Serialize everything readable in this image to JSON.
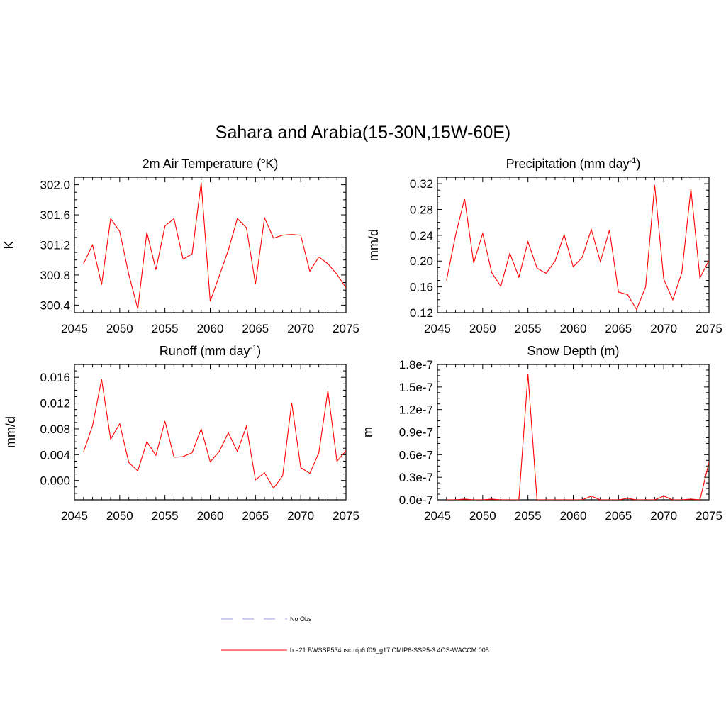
{
  "figure": {
    "title": "Sahara and Arabia(15-30N,15W-60E)"
  },
  "chart_data": [
    {
      "type": "line",
      "id": "temp",
      "title": "2m Air Temperature (°K)",
      "title_parts": [
        "2m Air Temperature (",
        "o",
        "K)"
      ],
      "xlabel": "",
      "ylabel": "K",
      "xlim": [
        2045,
        2075
      ],
      "ylim": [
        300.3,
        302.1
      ],
      "xticks": [
        2045,
        2050,
        2055,
        2060,
        2065,
        2070,
        2075
      ],
      "xtick_labels": [
        "2045",
        "2050",
        "2055",
        "2060",
        "2065",
        "2070",
        "2075"
      ],
      "yticks": [
        300.4,
        300.8,
        301.2,
        301.6,
        302.0
      ],
      "ytick_labels": [
        "300.4",
        "300.8",
        "301.2",
        "301.6",
        "302.0"
      ],
      "series": [
        {
          "name": "b.e21.BWSSP534oscmip6.f09_g17.CMIP6-SSP5-3.4OS-WACCM.005",
          "color": "#ff0000",
          "x": [
            2046,
            2047,
            2048,
            2049,
            2050,
            2051,
            2052,
            2053,
            2054,
            2055,
            2056,
            2057,
            2058,
            2059,
            2060,
            2061,
            2062,
            2063,
            2064,
            2065,
            2066,
            2067,
            2068,
            2069,
            2070,
            2071,
            2072,
            2073,
            2074,
            2075
          ],
          "y": [
            300.95,
            301.2,
            300.67,
            301.55,
            301.38,
            300.81,
            300.35,
            301.37,
            300.87,
            301.45,
            301.55,
            301.01,
            301.08,
            302.03,
            300.45,
            300.79,
            301.13,
            301.55,
            301.43,
            300.68,
            301.56,
            301.29,
            301.33,
            301.34,
            301.33,
            300.85,
            301.04,
            300.95,
            300.81,
            300.63
          ]
        }
      ]
    },
    {
      "type": "line",
      "id": "precip",
      "title": "Precipitation (mm day-1)",
      "title_parts": [
        "Precipitation (mm day",
        "-1",
        ")"
      ],
      "xlabel": "",
      "ylabel": "mm/d",
      "xlim": [
        2045,
        2075
      ],
      "ylim": [
        0.12,
        0.33
      ],
      "xticks": [
        2045,
        2050,
        2055,
        2060,
        2065,
        2070,
        2075
      ],
      "xtick_labels": [
        "2045",
        "2050",
        "2055",
        "2060",
        "2065",
        "2070",
        "2075"
      ],
      "yticks": [
        0.12,
        0.16,
        0.2,
        0.24,
        0.28,
        0.32
      ],
      "ytick_labels": [
        "0.12",
        "0.16",
        "0.20",
        "0.24",
        "0.28",
        "0.32"
      ],
      "series": [
        {
          "name": "b.e21.BWSSP534oscmip6.f09_g17.CMIP6-SSP5-3.4OS-WACCM.005",
          "color": "#ff0000",
          "x": [
            2046,
            2047,
            2048,
            2049,
            2050,
            2051,
            2052,
            2053,
            2054,
            2055,
            2056,
            2057,
            2058,
            2059,
            2060,
            2061,
            2062,
            2063,
            2064,
            2065,
            2066,
            2067,
            2068,
            2069,
            2070,
            2071,
            2072,
            2073,
            2074,
            2075
          ],
          "y": [
            0.17,
            0.24,
            0.297,
            0.197,
            0.243,
            0.182,
            0.161,
            0.212,
            0.175,
            0.23,
            0.189,
            0.181,
            0.2,
            0.241,
            0.191,
            0.206,
            0.249,
            0.199,
            0.248,
            0.152,
            0.148,
            0.125,
            0.16,
            0.318,
            0.172,
            0.14,
            0.182,
            0.312,
            0.174,
            0.201
          ]
        }
      ]
    },
    {
      "type": "line",
      "id": "runoff",
      "title": "Runoff (mm day-1)",
      "title_parts": [
        "Runoff (mm day",
        "-1",
        ")"
      ],
      "xlabel": "",
      "ylabel": "mm/d",
      "xlim": [
        2045,
        2075
      ],
      "ylim": [
        -0.003,
        0.018
      ],
      "xticks": [
        2045,
        2050,
        2055,
        2060,
        2065,
        2070,
        2075
      ],
      "xtick_labels": [
        "2045",
        "2050",
        "2055",
        "2060",
        "2065",
        "2070",
        "2075"
      ],
      "yticks": [
        0.0,
        0.004,
        0.008,
        0.012,
        0.016
      ],
      "ytick_labels": [
        "0.000",
        "0.004",
        "0.008",
        "0.012",
        "0.016"
      ],
      "series": [
        {
          "name": "b.e21.BWSSP534oscmip6.f09_g17.CMIP6-SSP5-3.4OS-WACCM.005",
          "color": "#ff0000",
          "x": [
            2046,
            2047,
            2048,
            2049,
            2050,
            2051,
            2052,
            2053,
            2054,
            2055,
            2056,
            2057,
            2058,
            2059,
            2060,
            2061,
            2062,
            2063,
            2064,
            2065,
            2066,
            2067,
            2068,
            2069,
            2070,
            2071,
            2072,
            2073,
            2074,
            2075
          ],
          "y": [
            0.0044,
            0.0085,
            0.0157,
            0.0064,
            0.0088,
            0.0028,
            0.0015,
            0.006,
            0.0039,
            0.0092,
            0.0036,
            0.0037,
            0.0043,
            0.008,
            0.0029,
            0.0045,
            0.0074,
            0.0045,
            0.0084,
            0.0001,
            0.0012,
            -0.0012,
            0.0007,
            0.0121,
            0.002,
            0.0011,
            0.0043,
            0.0139,
            0.003,
            0.0046
          ]
        }
      ]
    },
    {
      "type": "line",
      "id": "snow",
      "title": "Snow Depth (m)",
      "title_parts": [
        "Snow Depth (m)",
        "",
        ""
      ],
      "xlabel": "",
      "ylabel": "m",
      "xlim": [
        2045,
        2075
      ],
      "ylim": [
        0.0,
        1.8e-07
      ],
      "xticks": [
        2045,
        2050,
        2055,
        2060,
        2065,
        2070,
        2075
      ],
      "xtick_labels": [
        "2045",
        "2050",
        "2055",
        "2060",
        "2065",
        "2070",
        "2075"
      ],
      "yticks": [
        0.0,
        3e-08,
        6e-08,
        9e-08,
        1.2e-07,
        1.5e-07,
        1.8e-07
      ],
      "ytick_labels": [
        "0.0e-7",
        "0.3e-7",
        "0.6e-7",
        "0.9e-7",
        "1.2e-7",
        "1.5e-7",
        "1.8e-7"
      ],
      "series": [
        {
          "name": "b.e21.BWSSP534oscmip6.f09_g17.CMIP6-SSP5-3.4OS-WACCM.005",
          "color": "#ff0000",
          "x": [
            2046,
            2047,
            2048,
            2049,
            2050,
            2051,
            2052,
            2053,
            2054,
            2055,
            2056,
            2057,
            2058,
            2059,
            2060,
            2061,
            2062,
            2063,
            2064,
            2065,
            2066,
            2067,
            2068,
            2069,
            2070,
            2071,
            2072,
            2073,
            2074,
            2075
          ],
          "y": [
            0.0,
            0.0,
            1e-09,
            0.0,
            0.0,
            1e-09,
            0.0,
            0.0,
            0.0,
            1.67e-07,
            0.0,
            0.0,
            0.0,
            0.0,
            0.0,
            0.0,
            5e-09,
            0.0,
            0.0,
            0.0,
            2e-09,
            0.0,
            0.0,
            0.0,
            5e-09,
            0.0,
            0.0,
            1e-09,
            0.0,
            5e-08
          ]
        }
      ]
    }
  ],
  "legend": {
    "entries": [
      {
        "label": "No Obs",
        "color": "#9999dd",
        "style": "dashed"
      },
      {
        "label": "b.e21.BWSSP534oscmip6.f09_g17.CMIP6-SSP5-3.4OS-WACCM.005",
        "color": "#ff0000",
        "style": "solid"
      }
    ]
  }
}
